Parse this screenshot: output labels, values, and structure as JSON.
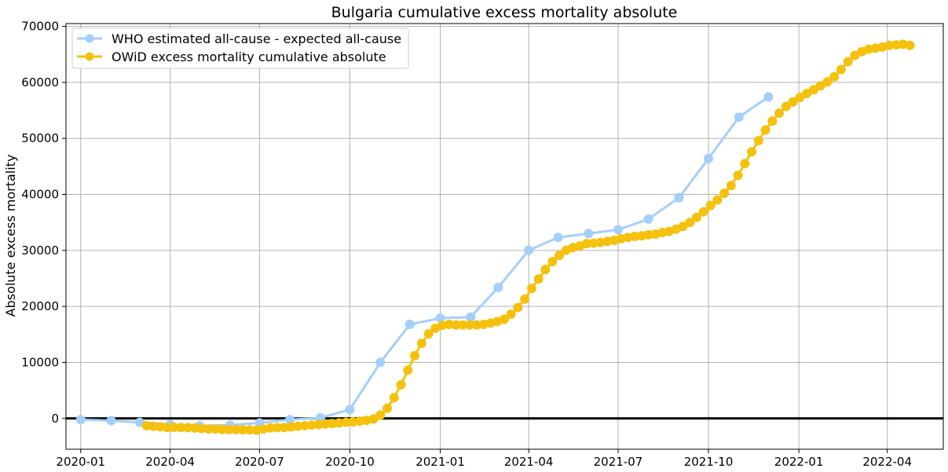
{
  "chart_data": {
    "type": "line",
    "title": "Bulgaria cumulative excess mortality absolute",
    "xlabel": "",
    "ylabel": "Absolute excess mortality",
    "xlim": [
      "2019-12-17",
      "2022-05-28"
    ],
    "ylim": [
      -5500,
      70500
    ],
    "yticks": [
      0,
      10000,
      20000,
      30000,
      40000,
      50000,
      60000,
      70000
    ],
    "xticks": [
      {
        "date": "2020-01-01",
        "label": "2020-01"
      },
      {
        "date": "2020-04-01",
        "label": "2020-04"
      },
      {
        "date": "2020-07-01",
        "label": "2020-07"
      },
      {
        "date": "2020-10-01",
        "label": "2020-10"
      },
      {
        "date": "2021-01-01",
        "label": "2021-01"
      },
      {
        "date": "2021-04-01",
        "label": "2021-04"
      },
      {
        "date": "2021-07-01",
        "label": "2021-07"
      },
      {
        "date": "2021-10-01",
        "label": "2021-10"
      },
      {
        "date": "2022-01-01",
        "label": "2022-01"
      },
      {
        "date": "2022-04-01",
        "label": "2022-04"
      }
    ],
    "grid": true,
    "legend_position": "top-left",
    "reference_line": {
      "y": 0,
      "color": "#000000"
    },
    "series": [
      {
        "name": "WHO estimated all-cause - expected all-cause",
        "color": "#a3cffa",
        "x": [
          "2020-01-01",
          "2020-02-01",
          "2020-03-01",
          "2020-04-01",
          "2020-05-01",
          "2020-06-01",
          "2020-07-01",
          "2020-08-01",
          "2020-09-01",
          "2020-10-01",
          "2020-11-01",
          "2020-12-01",
          "2021-01-01",
          "2021-02-01",
          "2021-03-01",
          "2021-04-01",
          "2021-05-01",
          "2021-06-01",
          "2021-07-01",
          "2021-08-01",
          "2021-09-01",
          "2021-10-01",
          "2021-11-01",
          "2021-12-01"
        ],
        "y": [
          -200,
          -400,
          -700,
          -1100,
          -1300,
          -1200,
          -800,
          -200,
          100,
          1600,
          10000,
          16800,
          17900,
          18100,
          23400,
          30000,
          32300,
          33000,
          33700,
          35600,
          39400,
          46400,
          53800,
          57400
        ]
      },
      {
        "name": "OWiD excess mortality cumulative absolute",
        "color": "#f5c10f",
        "x": [
          "2020-03-08",
          "2020-03-15",
          "2020-03-22",
          "2020-03-29",
          "2020-04-05",
          "2020-04-12",
          "2020-04-19",
          "2020-04-26",
          "2020-05-03",
          "2020-05-10",
          "2020-05-17",
          "2020-05-24",
          "2020-05-31",
          "2020-06-07",
          "2020-06-14",
          "2020-06-21",
          "2020-06-28",
          "2020-07-05",
          "2020-07-12",
          "2020-07-19",
          "2020-07-26",
          "2020-08-02",
          "2020-08-09",
          "2020-08-16",
          "2020-08-23",
          "2020-08-30",
          "2020-09-06",
          "2020-09-13",
          "2020-09-20",
          "2020-09-27",
          "2020-10-04",
          "2020-10-11",
          "2020-10-18",
          "2020-10-25",
          "2020-11-01",
          "2020-11-08",
          "2020-11-15",
          "2020-11-22",
          "2020-11-29",
          "2020-12-06",
          "2020-12-13",
          "2020-12-20",
          "2020-12-27",
          "2021-01-03",
          "2021-01-10",
          "2021-01-17",
          "2021-01-24",
          "2021-01-31",
          "2021-02-07",
          "2021-02-14",
          "2021-02-21",
          "2021-02-28",
          "2021-03-07",
          "2021-03-14",
          "2021-03-21",
          "2021-03-28",
          "2021-04-04",
          "2021-04-11",
          "2021-04-18",
          "2021-04-25",
          "2021-05-02",
          "2021-05-09",
          "2021-05-16",
          "2021-05-23",
          "2021-05-30",
          "2021-06-06",
          "2021-06-13",
          "2021-06-20",
          "2021-06-27",
          "2021-07-04",
          "2021-07-11",
          "2021-07-18",
          "2021-07-25",
          "2021-08-01",
          "2021-08-08",
          "2021-08-15",
          "2021-08-22",
          "2021-08-29",
          "2021-09-05",
          "2021-09-12",
          "2021-09-19",
          "2021-09-26",
          "2021-10-03",
          "2021-10-10",
          "2021-10-17",
          "2021-10-24",
          "2021-10-31",
          "2021-11-07",
          "2021-11-14",
          "2021-11-21",
          "2021-11-28",
          "2021-12-05",
          "2021-12-12",
          "2021-12-19",
          "2021-12-26",
          "2022-01-02",
          "2022-01-09",
          "2022-01-16",
          "2022-01-23",
          "2022-01-30",
          "2022-02-06",
          "2022-02-13",
          "2022-02-20",
          "2022-02-27",
          "2022-03-06",
          "2022-03-13",
          "2022-03-20",
          "2022-03-27",
          "2022-04-03",
          "2022-04-10",
          "2022-04-17",
          "2022-04-24"
        ],
        "y": [
          -1300,
          -1400,
          -1500,
          -1600,
          -1600,
          -1600,
          -1650,
          -1700,
          -1800,
          -1900,
          -1900,
          -1950,
          -2000,
          -2000,
          -2050,
          -2050,
          -2100,
          -1900,
          -1700,
          -1650,
          -1600,
          -1500,
          -1400,
          -1300,
          -1200,
          -1100,
          -1000,
          -900,
          -800,
          -700,
          -600,
          -500,
          -350,
          -100,
          600,
          1800,
          3700,
          6000,
          8600,
          11200,
          13400,
          15100,
          16100,
          16600,
          16800,
          16700,
          16700,
          16700,
          16700,
          16800,
          17000,
          17300,
          17700,
          18600,
          19800,
          21300,
          23200,
          24900,
          26600,
          28000,
          29100,
          30000,
          30500,
          30800,
          31200,
          31300,
          31400,
          31600,
          31800,
          32100,
          32300,
          32500,
          32600,
          32800,
          32900,
          33200,
          33400,
          33800,
          34300,
          35000,
          35900,
          36900,
          38000,
          39000,
          40200,
          41600,
          43400,
          45500,
          47600,
          49600,
          51500,
          53100,
          54500,
          55700,
          56500,
          57300,
          58000,
          58700,
          59400,
          60100,
          61000,
          62300,
          63700,
          64800,
          65500,
          65900,
          66100,
          66300,
          66600,
          66700,
          66800,
          66600
        ]
      }
    ]
  }
}
